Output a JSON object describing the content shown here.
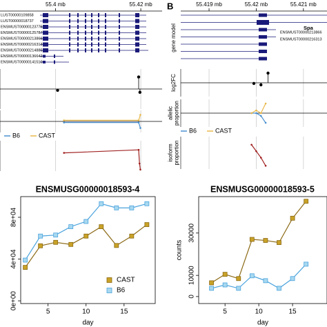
{
  "chart_data": [
    {
      "type": "genome-track",
      "xlim": [
        55.387,
        55.425
      ],
      "xticks": [
        {
          "value": 55.4,
          "label": "55.4 mb"
        },
        {
          "value": 55.42,
          "label": "55.42 mb"
        }
      ],
      "transcripts": [
        "LUST00000109858",
        "LUST00000018737",
        "ENSMUST00000123775",
        "ENSMUST00000125787",
        "ENSMUST00000213866",
        "ENSMUST00000216313",
        "ENSMUST00000214885",
        "ENSMUST00000136642",
        "ENSMUST00000141510"
      ],
      "tracks": [
        {
          "type": "lollipop",
          "ylim": [
            -3,
            3
          ],
          "hline": 0,
          "x": [
            55.4005,
            55.4195,
            55.4198
          ],
          "values": [
            -0.2,
            1.8,
            -0.5
          ]
        },
        {
          "type": "line",
          "ylim": [
            0,
            1
          ],
          "hline": 0.5,
          "legend": true,
          "series": [
            {
              "name": "B6",
              "color": "#4a90d0",
              "x": [
                55.402,
                55.4195,
                55.4199
              ],
              "values": [
                0.45,
                0.45,
                0.2
              ]
            },
            {
              "name": "CAST",
              "color": "#e8b84a",
              "x": [
                55.402,
                55.4195,
                55.4199
              ],
              "values": [
                0.55,
                0.55,
                0.8
              ]
            }
          ]
        },
        {
          "type": "line",
          "ylim": [
            0,
            1
          ],
          "series": [
            {
              "color": "#a02020",
              "x": [
                55.402,
                55.4195,
                55.4197,
                55.4199
              ],
              "values": [
                0.6,
                0.7,
                0.25,
                0.05
              ]
            }
          ]
        }
      ]
    },
    {
      "type": "genome-track",
      "label": "B",
      "xlim": [
        55.4184,
        55.4215
      ],
      "xticks": [
        {
          "value": 55.419,
          "label": "55.419 mb"
        },
        {
          "value": 55.42,
          "label": "55.42 mb"
        },
        {
          "value": 55.421,
          "label": "55.421 mb"
        }
      ],
      "gene_label": "gene model",
      "transcripts": [
        "Spa",
        "ENSMUST00000213866",
        "ENSMUST00000216313"
      ],
      "tracks": [
        {
          "type": "lollipop",
          "ylabel": [
            "log2FC"
          ],
          "ylim": [
            -2,
            2
          ],
          "hline": 0,
          "x": [
            55.41995,
            55.4201,
            55.42025
          ],
          "values": [
            -0.1,
            -0.3,
            1.4
          ]
        },
        {
          "type": "line",
          "ylabel": [
            "allelic",
            "proportion"
          ],
          "ylim": [
            0,
            1
          ],
          "hline": 0.5,
          "legend": true,
          "series": [
            {
              "name": "B6",
              "color": "#4a90d0",
              "x": [
                55.4199,
                55.42,
                55.4201,
                55.4202
              ],
              "values": [
                0.5,
                0.5,
                0.4,
                0.15
              ]
            },
            {
              "name": "CAST",
              "color": "#e8b84a",
              "x": [
                55.4199,
                55.42,
                55.4201,
                55.4202
              ],
              "values": [
                0.5,
                0.6,
                0.5,
                0.85
              ]
            }
          ]
        },
        {
          "type": "line",
          "ylabel": [
            "isoform",
            "proportion"
          ],
          "ylim": [
            0,
            1
          ],
          "series": [
            {
              "color": "#a02020",
              "x": [
                55.4199,
                55.42,
                55.4201,
                55.4202
              ],
              "values": [
                0.75,
                0.55,
                0.35,
                0.1
              ]
            }
          ]
        }
      ]
    },
    {
      "type": "line",
      "title": "ENSMUSG00000018593-4",
      "xlabel": "day",
      "x": [
        2,
        4,
        6,
        8,
        10,
        12,
        14,
        16,
        18
      ],
      "xlim": [
        1.4,
        19.1
      ],
      "xticks": [
        5,
        10,
        15
      ],
      "ylim": [
        -2600,
        99800
      ],
      "yticks": [
        {
          "value": 0,
          "label": "0e+00"
        },
        {
          "value": 40000,
          "label": "4e+04"
        },
        {
          "value": 80000,
          "label": "8e+04"
        }
      ],
      "legend": "bottom-right",
      "series": [
        {
          "name": "CAST",
          "color": "#c9a227",
          "line_color": "#8b6914",
          "values": [
            32000,
            52700,
            56000,
            54000,
            62000,
            71000,
            53000,
            62000,
            73000
          ]
        },
        {
          "name": "B6",
          "color": "#a8d8f0",
          "line_color": "#4aa3dd",
          "values": [
            39000,
            62000,
            63000,
            71000,
            76000,
            93000,
            89000,
            89000,
            93000
          ]
        }
      ]
    },
    {
      "type": "line",
      "title": "ENSMUSG00000018593-5",
      "xlabel": "day",
      "ylabel": "counts",
      "x": [
        3,
        5,
        7,
        9,
        11,
        13,
        15,
        17
      ],
      "xlim": [
        1.1,
        20.1
      ],
      "xticks": [
        5,
        10,
        15
      ],
      "ylim": [
        -3300,
        47200
      ],
      "yticks": [
        0,
        10000,
        30000
      ],
      "series": [
        {
          "name": "CAST",
          "color": "#c9a227",
          "line_color": "#8b6914",
          "values": [
            6500,
            10500,
            8500,
            27000,
            26500,
            25500,
            37000,
            45000
          ]
        },
        {
          "name": "B6",
          "color": "#a8d8f0",
          "line_color": "#4aa3dd",
          "values": [
            3900,
            5500,
            3900,
            9800,
            7500,
            3900,
            8500,
            15300
          ]
        }
      ]
    }
  ]
}
